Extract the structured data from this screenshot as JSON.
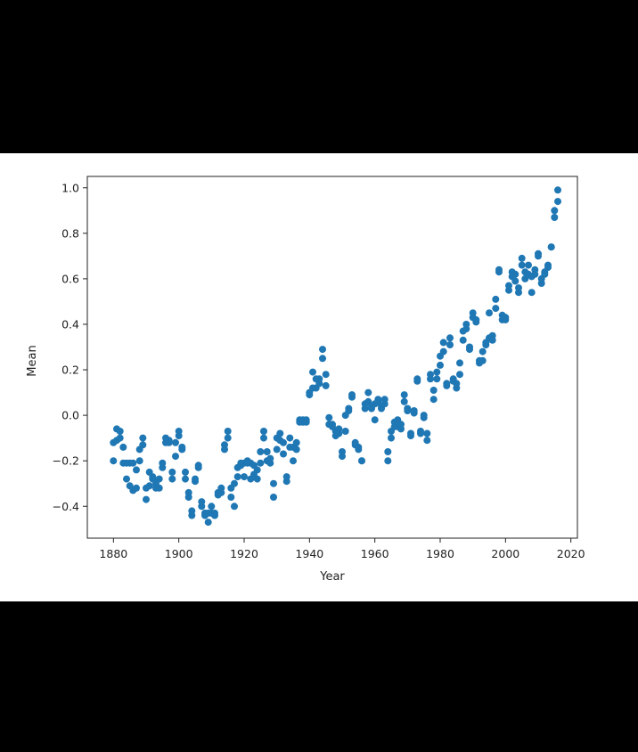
{
  "colors": {
    "background": "#000000",
    "plot_background": "#ffffff",
    "marker": "#1f77b4",
    "axes": "#222222"
  },
  "chart_data": {
    "type": "scatter",
    "title": "",
    "xlabel": "Year",
    "ylabel": "Mean",
    "xlim": [
      1872,
      2022
    ],
    "ylim": [
      -0.54,
      1.05
    ],
    "xticks": [
      1880,
      1900,
      1920,
      1940,
      1960,
      1980,
      2000,
      2020
    ],
    "yticks": [
      -0.4,
      -0.2,
      0.0,
      0.2,
      0.4,
      0.6,
      0.8,
      1.0
    ],
    "xtick_labels": [
      "1880",
      "1900",
      "1920",
      "1940",
      "1960",
      "1980",
      "2000",
      "2020"
    ],
    "ytick_labels": [
      "−0.4",
      "−0.2",
      "0.0",
      "0.2",
      "0.4",
      "0.6",
      "0.8",
      "1.0"
    ],
    "grid": false,
    "legend": false,
    "marker_color": "#1f77b4",
    "series": [
      {
        "values": [
          [
            1880,
            -0.2
          ],
          [
            1880,
            -0.12
          ],
          [
            1881,
            -0.06
          ],
          [
            1881,
            -0.11
          ],
          [
            1882,
            -0.07
          ],
          [
            1882,
            -0.1
          ],
          [
            1883,
            -0.21
          ],
          [
            1883,
            -0.14
          ],
          [
            1884,
            -0.28
          ],
          [
            1884,
            -0.21
          ],
          [
            1885,
            -0.31
          ],
          [
            1885,
            -0.21
          ],
          [
            1886,
            -0.33
          ],
          [
            1886,
            -0.21
          ],
          [
            1887,
            -0.32
          ],
          [
            1887,
            -0.24
          ],
          [
            1888,
            -0.2
          ],
          [
            1888,
            -0.15
          ],
          [
            1889,
            -0.1
          ],
          [
            1889,
            -0.13
          ],
          [
            1890,
            -0.37
          ],
          [
            1890,
            -0.32
          ],
          [
            1891,
            -0.25
          ],
          [
            1891,
            -0.31
          ],
          [
            1892,
            -0.28
          ],
          [
            1892,
            -0.27
          ],
          [
            1893,
            -0.32
          ],
          [
            1893,
            -0.3
          ],
          [
            1894,
            -0.32
          ],
          [
            1894,
            -0.28
          ],
          [
            1895,
            -0.23
          ],
          [
            1895,
            -0.21
          ],
          [
            1896,
            -0.12
          ],
          [
            1896,
            -0.1
          ],
          [
            1897,
            -0.11
          ],
          [
            1897,
            -0.12
          ],
          [
            1898,
            -0.28
          ],
          [
            1898,
            -0.25
          ],
          [
            1899,
            -0.18
          ],
          [
            1899,
            -0.12
          ],
          [
            1900,
            -0.09
          ],
          [
            1900,
            -0.07
          ],
          [
            1901,
            -0.15
          ],
          [
            1901,
            -0.14
          ],
          [
            1902,
            -0.28
          ],
          [
            1902,
            -0.25
          ],
          [
            1903,
            -0.36
          ],
          [
            1903,
            -0.34
          ],
          [
            1904,
            -0.44
          ],
          [
            1904,
            -0.42
          ],
          [
            1905,
            -0.29
          ],
          [
            1905,
            -0.28
          ],
          [
            1906,
            -0.23
          ],
          [
            1906,
            -0.22
          ],
          [
            1907,
            -0.4
          ],
          [
            1907,
            -0.38
          ],
          [
            1908,
            -0.43
          ],
          [
            1908,
            -0.44
          ],
          [
            1909,
            -0.47
          ],
          [
            1909,
            -0.43
          ],
          [
            1910,
            -0.43
          ],
          [
            1910,
            -0.4
          ],
          [
            1911,
            -0.44
          ],
          [
            1911,
            -0.43
          ],
          [
            1912,
            -0.35
          ],
          [
            1912,
            -0.34
          ],
          [
            1913,
            -0.34
          ],
          [
            1913,
            -0.32
          ],
          [
            1914,
            -0.15
          ],
          [
            1914,
            -0.13
          ],
          [
            1915,
            -0.07
          ],
          [
            1915,
            -0.1
          ],
          [
            1916,
            -0.36
          ],
          [
            1916,
            -0.32
          ],
          [
            1917,
            -0.4
          ],
          [
            1917,
            -0.3
          ],
          [
            1918,
            -0.27
          ],
          [
            1918,
            -0.23
          ],
          [
            1919,
            -0.22
          ],
          [
            1919,
            -0.21
          ],
          [
            1920,
            -0.27
          ],
          [
            1920,
            -0.21
          ],
          [
            1921,
            -0.21
          ],
          [
            1921,
            -0.2
          ],
          [
            1922,
            -0.28
          ],
          [
            1922,
            -0.21
          ],
          [
            1923,
            -0.26
          ],
          [
            1923,
            -0.22
          ],
          [
            1924,
            -0.28
          ],
          [
            1924,
            -0.24
          ],
          [
            1925,
            -0.21
          ],
          [
            1925,
            -0.16
          ],
          [
            1926,
            -0.07
          ],
          [
            1926,
            -0.1
          ],
          [
            1927,
            -0.2
          ],
          [
            1927,
            -0.16
          ],
          [
            1928,
            -0.21
          ],
          [
            1928,
            -0.19
          ],
          [
            1929,
            -0.36
          ],
          [
            1929,
            -0.3
          ],
          [
            1930,
            -0.15
          ],
          [
            1930,
            -0.1
          ],
          [
            1931,
            -0.08
          ],
          [
            1931,
            -0.11
          ],
          [
            1932,
            -0.17
          ],
          [
            1932,
            -0.12
          ],
          [
            1933,
            -0.29
          ],
          [
            1933,
            -0.27
          ],
          [
            1934,
            -0.14
          ],
          [
            1934,
            -0.1
          ],
          [
            1935,
            -0.2
          ],
          [
            1935,
            -0.14
          ],
          [
            1936,
            -0.15
          ],
          [
            1936,
            -0.12
          ],
          [
            1937,
            -0.02
          ],
          [
            1937,
            -0.03
          ],
          [
            1938,
            -0.02
          ],
          [
            1938,
            -0.03
          ],
          [
            1939,
            -0.02
          ],
          [
            1939,
            -0.03
          ],
          [
            1940,
            0.1
          ],
          [
            1940,
            0.09
          ],
          [
            1941,
            0.19
          ],
          [
            1941,
            0.12
          ],
          [
            1942,
            0.16
          ],
          [
            1942,
            0.12
          ],
          [
            1943,
            0.14
          ],
          [
            1943,
            0.16
          ],
          [
            1944,
            0.29
          ],
          [
            1944,
            0.25
          ],
          [
            1945,
            0.18
          ],
          [
            1945,
            0.13
          ],
          [
            1946,
            -0.01
          ],
          [
            1946,
            -0.04
          ],
          [
            1947,
            -0.05
          ],
          [
            1947,
            -0.04
          ],
          [
            1948,
            -0.09
          ],
          [
            1948,
            -0.07
          ],
          [
            1949,
            -0.08
          ],
          [
            1949,
            -0.06
          ],
          [
            1950,
            -0.18
          ],
          [
            1950,
            -0.16
          ],
          [
            1951,
            -0.07
          ],
          [
            1951,
            0.0
          ],
          [
            1952,
            0.02
          ],
          [
            1952,
            0.03
          ],
          [
            1953,
            0.08
          ],
          [
            1953,
            0.09
          ],
          [
            1954,
            -0.13
          ],
          [
            1954,
            -0.12
          ],
          [
            1955,
            -0.14
          ],
          [
            1955,
            -0.15
          ],
          [
            1956,
            -0.2
          ],
          [
            1956,
            -0.2
          ],
          [
            1957,
            0.05
          ],
          [
            1957,
            0.03
          ],
          [
            1958,
            0.1
          ],
          [
            1958,
            0.06
          ],
          [
            1959,
            0.04
          ],
          [
            1959,
            0.03
          ],
          [
            1960,
            -0.02
          ],
          [
            1960,
            0.05
          ],
          [
            1961,
            0.07
          ],
          [
            1961,
            0.06
          ],
          [
            1962,
            0.04
          ],
          [
            1962,
            0.03
          ],
          [
            1963,
            0.07
          ],
          [
            1963,
            0.05
          ],
          [
            1964,
            -0.2
          ],
          [
            1964,
            -0.16
          ],
          [
            1965,
            -0.1
          ],
          [
            1965,
            -0.07
          ],
          [
            1966,
            -0.05
          ],
          [
            1966,
            -0.03
          ],
          [
            1967,
            -0.02
          ],
          [
            1967,
            -0.05
          ],
          [
            1968,
            -0.06
          ],
          [
            1968,
            -0.04
          ],
          [
            1969,
            0.09
          ],
          [
            1969,
            0.06
          ],
          [
            1970,
            0.03
          ],
          [
            1970,
            0.02
          ],
          [
            1971,
            -0.08
          ],
          [
            1971,
            -0.09
          ],
          [
            1972,
            0.02
          ],
          [
            1972,
            0.01
          ],
          [
            1973,
            0.16
          ],
          [
            1973,
            0.15
          ],
          [
            1974,
            -0.07
          ],
          [
            1974,
            -0.08
          ],
          [
            1975,
            -0.01
          ],
          [
            1975,
            0.0
          ],
          [
            1976,
            -0.11
          ],
          [
            1976,
            -0.08
          ],
          [
            1977,
            0.18
          ],
          [
            1977,
            0.16
          ],
          [
            1978,
            0.07
          ],
          [
            1978,
            0.11
          ],
          [
            1979,
            0.16
          ],
          [
            1979,
            0.19
          ],
          [
            1980,
            0.26
          ],
          [
            1980,
            0.22
          ],
          [
            1981,
            0.32
          ],
          [
            1981,
            0.28
          ],
          [
            1982,
            0.14
          ],
          [
            1982,
            0.13
          ],
          [
            1983,
            0.31
          ],
          [
            1983,
            0.34
          ],
          [
            1984,
            0.16
          ],
          [
            1984,
            0.15
          ],
          [
            1985,
            0.12
          ],
          [
            1985,
            0.14
          ],
          [
            1986,
            0.18
          ],
          [
            1986,
            0.23
          ],
          [
            1987,
            0.33
          ],
          [
            1987,
            0.37
          ],
          [
            1988,
            0.4
          ],
          [
            1988,
            0.38
          ],
          [
            1989,
            0.3
          ],
          [
            1989,
            0.29
          ],
          [
            1990,
            0.45
          ],
          [
            1990,
            0.43
          ],
          [
            1991,
            0.41
          ],
          [
            1991,
            0.42
          ],
          [
            1992,
            0.23
          ],
          [
            1992,
            0.24
          ],
          [
            1993,
            0.24
          ],
          [
            1993,
            0.28
          ],
          [
            1994,
            0.31
          ],
          [
            1994,
            0.32
          ],
          [
            1995,
            0.45
          ],
          [
            1995,
            0.34
          ],
          [
            1996,
            0.33
          ],
          [
            1996,
            0.35
          ],
          [
            1997,
            0.47
          ],
          [
            1997,
            0.51
          ],
          [
            1998,
            0.63
          ],
          [
            1998,
            0.64
          ],
          [
            1999,
            0.42
          ],
          [
            1999,
            0.44
          ],
          [
            2000,
            0.42
          ],
          [
            2000,
            0.43
          ],
          [
            2001,
            0.55
          ],
          [
            2001,
            0.57
          ],
          [
            2002,
            0.63
          ],
          [
            2002,
            0.61
          ],
          [
            2003,
            0.62
          ],
          [
            2003,
            0.59
          ],
          [
            2004,
            0.54
          ],
          [
            2004,
            0.56
          ],
          [
            2005,
            0.69
          ],
          [
            2005,
            0.66
          ],
          [
            2006,
            0.63
          ],
          [
            2006,
            0.6
          ],
          [
            2007,
            0.66
          ],
          [
            2007,
            0.62
          ],
          [
            2008,
            0.54
          ],
          [
            2008,
            0.61
          ],
          [
            2009,
            0.64
          ],
          [
            2009,
            0.62
          ],
          [
            2010,
            0.71
          ],
          [
            2010,
            0.7
          ],
          [
            2011,
            0.58
          ],
          [
            2011,
            0.6
          ],
          [
            2012,
            0.63
          ],
          [
            2012,
            0.62
          ],
          [
            2013,
            0.66
          ],
          [
            2013,
            0.65
          ],
          [
            2014,
            0.74
          ],
          [
            2014,
            0.74
          ],
          [
            2015,
            0.9
          ],
          [
            2015,
            0.87
          ],
          [
            2016,
            0.99
          ],
          [
            2016,
            0.94
          ]
        ]
      }
    ]
  }
}
